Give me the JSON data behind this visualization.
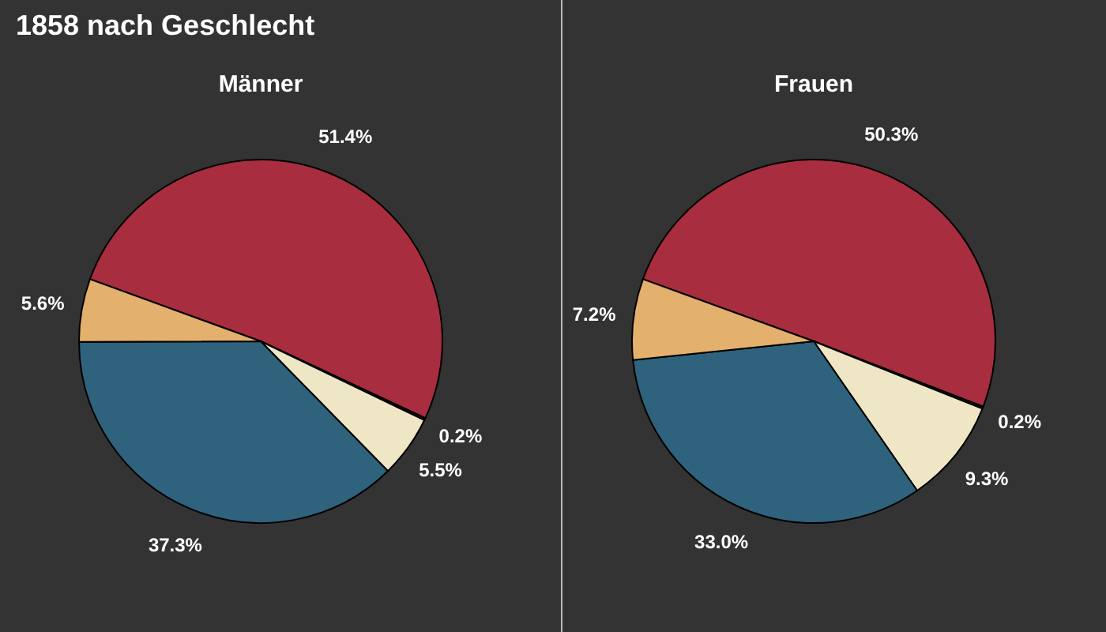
{
  "chart_data": [
    {
      "type": "pie",
      "title": "1858 nach Geschlecht",
      "subtitle": "Männer",
      "categories": [
        null,
        null,
        null,
        null,
        null
      ],
      "values": [
        51.4,
        0.2,
        5.5,
        37.3,
        5.6
      ],
      "value_labels": [
        "51.4%",
        "0.2%",
        "5.5%",
        "37.3%",
        "5.6%"
      ],
      "colors": [
        "#a82d3e",
        "#2a1205",
        "#efe6c6",
        "#2f627c",
        "#e4b06e"
      ],
      "legend": false
    },
    {
      "type": "pie",
      "subtitle": "Frauen",
      "categories": [
        null,
        null,
        null,
        null,
        null
      ],
      "values": [
        50.3,
        0.2,
        9.3,
        33.0,
        7.2
      ],
      "value_labels": [
        "50.3%",
        "0.2%",
        "9.3%",
        "33.0%",
        "7.2%"
      ],
      "colors": [
        "#a82d3e",
        "#2a1205",
        "#efe6c6",
        "#2f627c",
        "#e4b06e"
      ],
      "legend": false
    }
  ]
}
